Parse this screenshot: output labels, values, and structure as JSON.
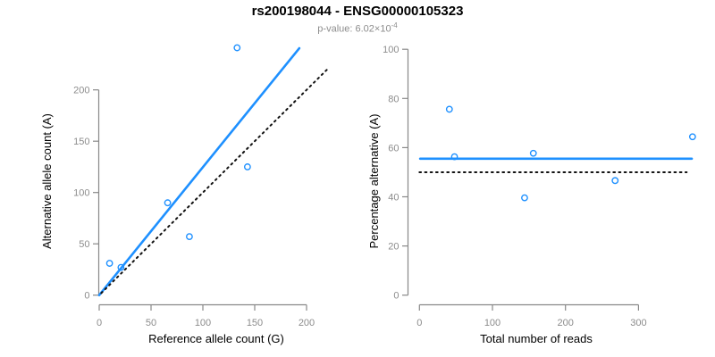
{
  "header": {
    "title": "rs200198044 - ENSG00000105323",
    "subtitle_prefix": "p-value: 6.02×10",
    "subtitle_exponent": "-4"
  },
  "colors": {
    "accent_blue": "#1E90FF",
    "dotted_black": "#111111",
    "axis_line": "#888888",
    "tick_text": "#8c8c8c",
    "subtitle_text": "#8c8c8c",
    "title_text": "#000000"
  },
  "chart_data": [
    {
      "id": "allele-count-scatter",
      "type": "scatter",
      "xlabel": "Reference allele count (G)",
      "ylabel": "Alternative allele count (A)",
      "xlim": [
        0,
        223
      ],
      "ylim": [
        0,
        244
      ],
      "xticks": [
        0,
        50,
        100,
        150,
        200
      ],
      "yticks": [
        0,
        50,
        100,
        150,
        200
      ],
      "grid": false,
      "legend": null,
      "points": [
        {
          "x": 10,
          "y": 31
        },
        {
          "x": 21,
          "y": 27
        },
        {
          "x": 66,
          "y": 90
        },
        {
          "x": 87,
          "y": 57
        },
        {
          "x": 133,
          "y": 241
        },
        {
          "x": 143,
          "y": 125
        }
      ],
      "lines": [
        {
          "name": "fit-line",
          "style": "solid",
          "color": "#1E90FF",
          "x1": 0,
          "y1": 0,
          "x2": 193,
          "y2": 240.6
        },
        {
          "name": "identity-line",
          "style": "dotted",
          "color": "#111111",
          "x1": 2,
          "y1": 2,
          "x2": 222,
          "y2": 222
        }
      ]
    },
    {
      "id": "percentage-scatter",
      "type": "scatter",
      "xlabel": "Total number of reads",
      "ylabel": "Percentage alternative (A)",
      "xlim": [
        0,
        380
      ],
      "ylim": [
        0,
        100
      ],
      "xticks": [
        0,
        100,
        200,
        300
      ],
      "yticks": [
        0,
        20,
        40,
        60,
        80,
        100
      ],
      "grid": false,
      "legend": null,
      "points": [
        {
          "x": 41,
          "y": 75.6
        },
        {
          "x": 48,
          "y": 56.3
        },
        {
          "x": 144,
          "y": 39.6
        },
        {
          "x": 156,
          "y": 57.7
        },
        {
          "x": 268,
          "y": 46.6
        },
        {
          "x": 374,
          "y": 64.4
        }
      ],
      "lines": [
        {
          "name": "fit-line",
          "style": "solid",
          "color": "#1E90FF",
          "x1": 1,
          "y1": 55.5,
          "x2": 373,
          "y2": 55.5
        },
        {
          "name": "null-line",
          "style": "dotted",
          "color": "#111111",
          "x1": 0,
          "y1": 50,
          "x2": 366,
          "y2": 50
        }
      ]
    }
  ]
}
